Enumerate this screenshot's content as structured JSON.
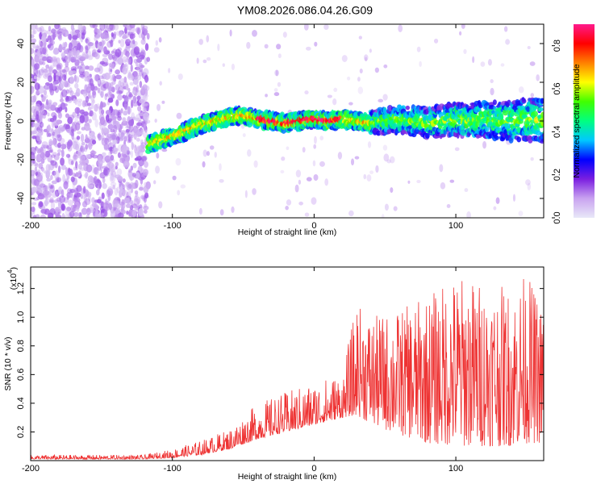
{
  "figure": {
    "title": "YM08.2026.086.04.26.G09"
  },
  "chart_data": [
    {
      "type": "heatmap",
      "name": "spectrogram",
      "title": "YM08.2026.086.04.26.G09",
      "xlabel": "Height of straight line (km)",
      "ylabel": "Frequency (Hz)",
      "xlim": [
        -200,
        162
      ],
      "ylim": [
        -50,
        50
      ],
      "xticks": [
        -200,
        -100,
        0,
        100
      ],
      "yticks": [
        -40,
        -20,
        0,
        20,
        40
      ],
      "signal_track": {
        "x": [
          -117,
          -110,
          -100,
          -90,
          -80,
          -70,
          -60,
          -50,
          -40,
          -30,
          -20,
          -10,
          0,
          10,
          20,
          30,
          40,
          50,
          60,
          70,
          80,
          90,
          100,
          110,
          120,
          130,
          140,
          150,
          160
        ],
        "freq": [
          -12,
          -10,
          -8,
          -5,
          -2,
          0,
          2,
          3,
          1,
          0,
          -1,
          0,
          1,
          0,
          1,
          0,
          -1,
          0,
          1,
          0,
          -1,
          0,
          1,
          0,
          1,
          0,
          0,
          1,
          0
        ]
      },
      "noise_region_x": [
        -200,
        -117
      ],
      "colorbar": {
        "label": "Normalized spectral amplitude",
        "range": [
          0.0,
          0.9
        ],
        "ticks": [
          "0.0",
          "0.2",
          "0.4",
          "0.6",
          "0.8"
        ],
        "colormap": [
          "#e8e8f8",
          "#c9a3f0",
          "#7b1fe0",
          "#0000ff",
          "#00c8ff",
          "#00ff80",
          "#40ff00",
          "#ffff00",
          "#ff8000",
          "#ff0000",
          "#ff1a8c"
        ]
      }
    },
    {
      "type": "line",
      "name": "snr",
      "xlabel": "Height of straight line (km)",
      "ylabel": "SNR (10 * v/v)",
      "yscale_label": "(x10",
      "yscale_exponent": "4",
      "xlim": [
        -200,
        162
      ],
      "ylim": [
        0,
        1.35
      ],
      "xticks": [
        -200,
        -100,
        0,
        100
      ],
      "yticks": [
        "0.2",
        "0.4",
        "0.6",
        "0.8",
        "1.0",
        "1.2"
      ],
      "color": "#ee3333",
      "envelope": {
        "x": [
          -200,
          -120,
          -100,
          -80,
          -60,
          -40,
          -20,
          0,
          20,
          30,
          40,
          60,
          80,
          100,
          120,
          140,
          150,
          162
        ],
        "base": [
          0.01,
          0.01,
          0.02,
          0.04,
          0.08,
          0.15,
          0.2,
          0.25,
          0.3,
          0.32,
          0.25,
          0.18,
          0.12,
          0.1,
          0.1,
          0.1,
          0.12,
          0.12
        ],
        "peak": [
          0.04,
          0.04,
          0.08,
          0.14,
          0.22,
          0.4,
          0.48,
          0.55,
          0.62,
          1.1,
          1.0,
          1.05,
          1.15,
          1.3,
          1.25,
          1.2,
          1.32,
          1.05
        ]
      }
    }
  ]
}
